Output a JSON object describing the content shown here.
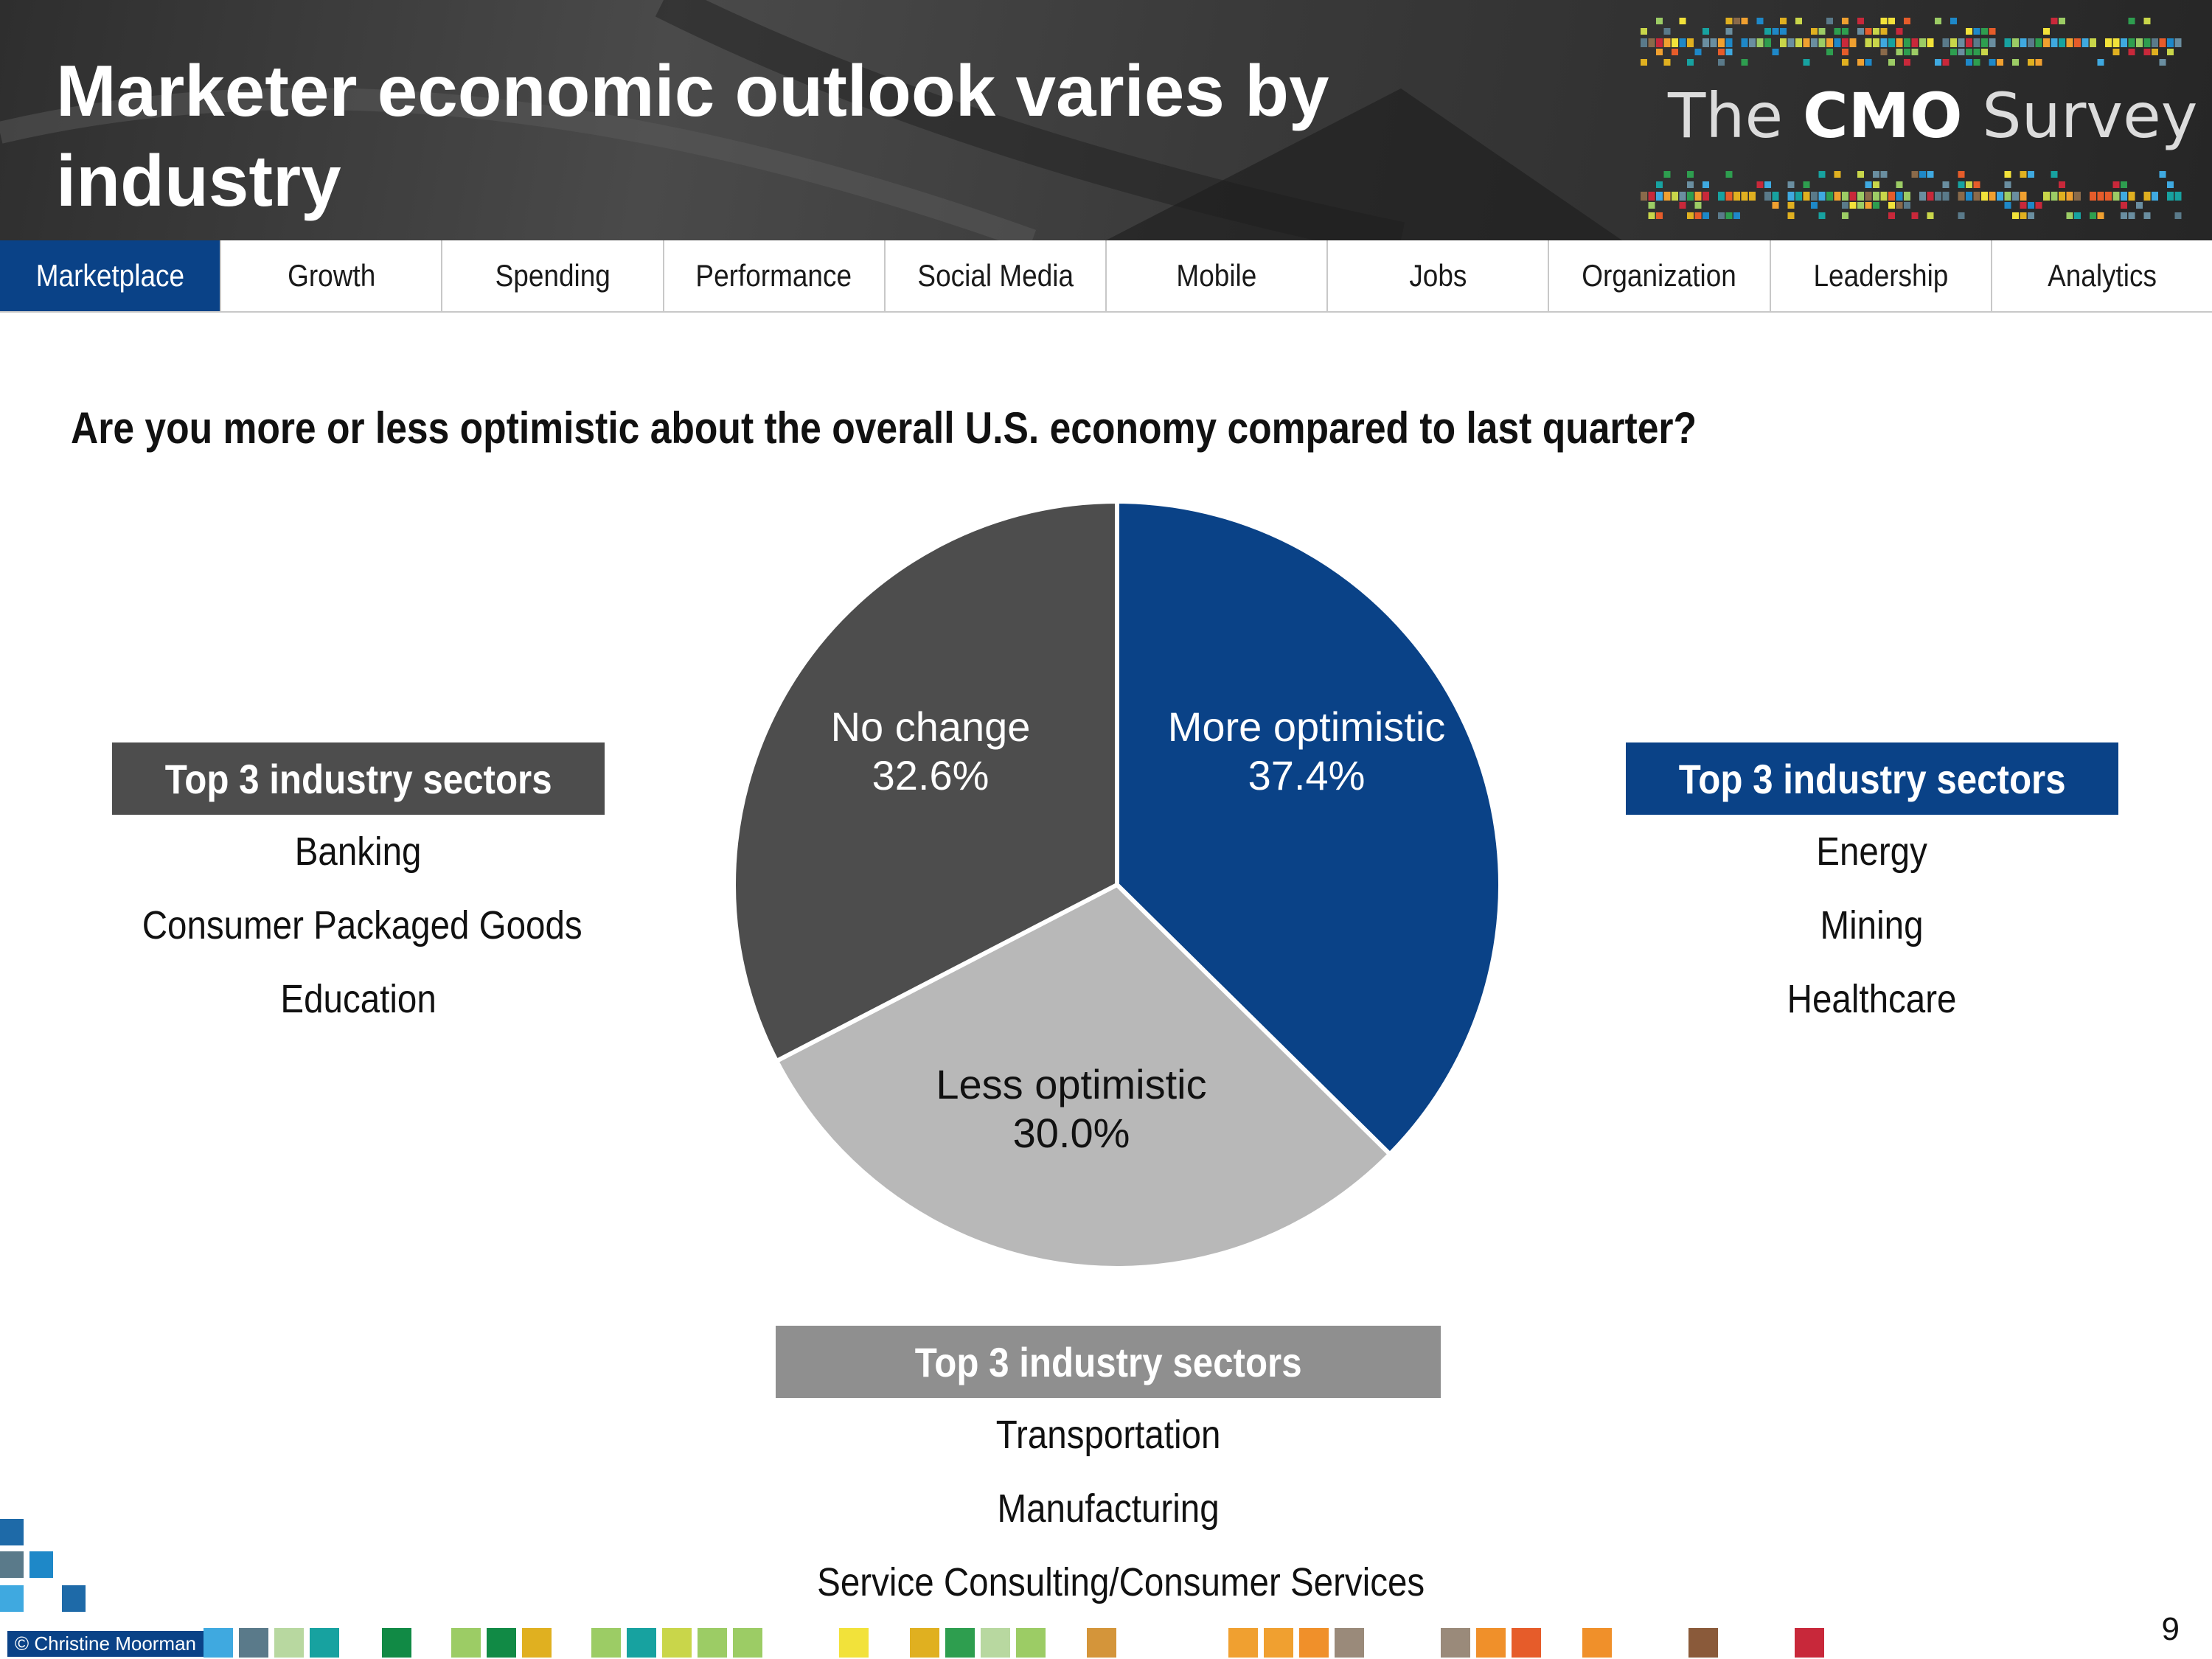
{
  "header": {
    "title": "Marketer economic outlook varies by industry",
    "logo_prefix": "The",
    "logo_bold": "CMO",
    "logo_suffix": "Survey"
  },
  "nav": {
    "tabs": [
      {
        "label": "Marketplace",
        "active": true
      },
      {
        "label": "Growth",
        "active": false
      },
      {
        "label": "Spending",
        "active": false
      },
      {
        "label": "Performance",
        "active": false
      },
      {
        "label": "Social Media",
        "active": false
      },
      {
        "label": "Mobile",
        "active": false
      },
      {
        "label": "Jobs",
        "active": false
      },
      {
        "label": "Organization",
        "active": false
      },
      {
        "label": "Leadership",
        "active": false
      },
      {
        "label": "Analytics",
        "active": false
      }
    ]
  },
  "question": "Are you more or less optimistic about the overall U.S. economy compared to last quarter?",
  "chart_data": {
    "type": "pie",
    "title": "",
    "slices": [
      {
        "label": "More optimistic",
        "value": 37.4,
        "value_label": "37.4%",
        "color": "#0a4287",
        "text_color": "#ffffff"
      },
      {
        "label": "Less optimistic",
        "value": 30.0,
        "value_label": "30.0%",
        "color": "#b8b8b8",
        "text_color": "#111111"
      },
      {
        "label": "No change",
        "value": 32.6,
        "value_label": "32.6%",
        "color": "#4d4d4d",
        "text_color": "#ffffff"
      }
    ],
    "start": "12 o'clock",
    "direction": "clockwise"
  },
  "sectors": {
    "no_change": {
      "header": "Top 3 industry sectors",
      "header_color": "#4d4d4d",
      "items": [
        "Banking",
        "Consumer Packaged Goods",
        "Education"
      ]
    },
    "more_optimistic": {
      "header": "Top 3 industry sectors",
      "header_color": "#0a4287",
      "items": [
        "Energy",
        "Mining",
        "Healthcare"
      ]
    },
    "less_optimistic": {
      "header": "Top 3 industry sectors",
      "header_color": "#8f8f8f",
      "items": [
        "Transportation",
        "Manufacturing",
        "Service Consulting/Consumer Services"
      ]
    }
  },
  "footer": {
    "copyright": "© Christine Moorman",
    "page_number": "9"
  }
}
